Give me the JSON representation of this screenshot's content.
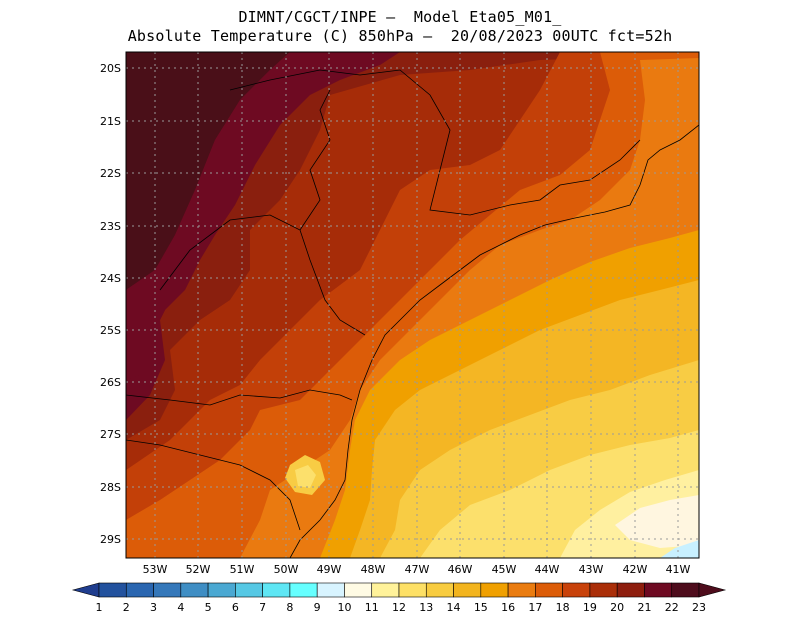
{
  "title": {
    "line1": "DIMNT/CGCT/INPE –  Model Eta05_M01_",
    "line2": "Absolute Temperature (C) 850hPa –  20/08/2023 00UTC fct=52h"
  },
  "map": {
    "lat_labels": [
      "20S",
      "21S",
      "22S",
      "23S",
      "24S",
      "25S",
      "26S",
      "27S",
      "28S",
      "29S"
    ],
    "lon_labels": [
      "53W",
      "52W",
      "51W",
      "50W",
      "49W",
      "48W",
      "47W",
      "46W",
      "45W",
      "44W",
      "43W",
      "42W",
      "41W"
    ],
    "field_colors": {
      "c23": "#4a0f18",
      "c22": "#6e0a22",
      "c21": "#8a1f0e",
      "c20": "#a62c08",
      "c19": "#c34008",
      "c18": "#dc5c08",
      "c17": "#ea7a10",
      "c16": "#f0a000",
      "c15": "#f4b624",
      "c14": "#f8cc44",
      "c13": "#fce06c",
      "c12": "#fff0a0",
      "c11": "#fff6e0",
      "c10": "#c8f0ff"
    }
  },
  "colorbar": {
    "labels": [
      "1",
      "2",
      "3",
      "4",
      "5",
      "6",
      "7",
      "8",
      "9",
      "10",
      "11",
      "12",
      "13",
      "14",
      "15",
      "16",
      "17",
      "18",
      "19",
      "20",
      "21",
      "22",
      "23"
    ],
    "colors": [
      "#1f3d8e",
      "#22529e",
      "#2a66b0",
      "#3578ba",
      "#3f8ec4",
      "#4aa8d2",
      "#56c8e4",
      "#5ee6f4",
      "#66ffff",
      "#d8f4ff",
      "#fffbe4",
      "#fff29a",
      "#fde066",
      "#f8cc40",
      "#f2b41e",
      "#f0a000",
      "#ea7c10",
      "#dc5c08",
      "#c8420a",
      "#aa2e08",
      "#8e1e0e",
      "#6e0a22",
      "#4e0c1c"
    ]
  }
}
